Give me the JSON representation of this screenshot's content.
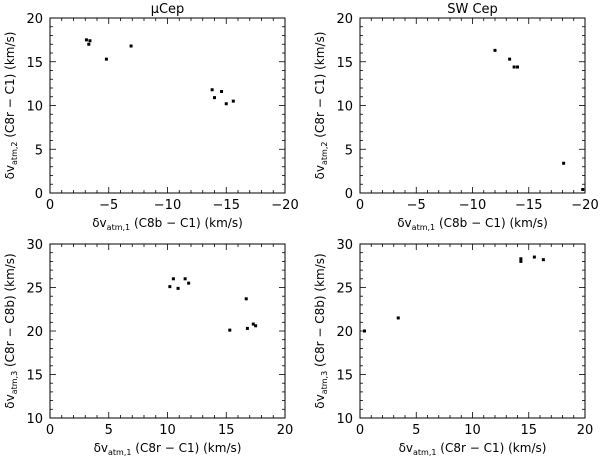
{
  "chart_data": [
    {
      "type": "scatter",
      "title": "μCep",
      "xlabel": {
        "main": "δv",
        "sub": "atm,1",
        "rest": " (C8b − C1) (km/s)"
      },
      "ylabel": {
        "main": "δv",
        "sub": "atm,2",
        "rest": " (C8r − C1) (km/s)"
      },
      "xlim": [
        0,
        -20
      ],
      "ylim": [
        0,
        20
      ],
      "xticks": [
        0,
        -5,
        -10,
        -15,
        -20
      ],
      "yticks": [
        0,
        5,
        10,
        15,
        20
      ],
      "grid": false,
      "series": [
        {
          "points": [
            [
              -3.1,
              17.5
            ],
            [
              -3.4,
              17.4
            ],
            [
              -3.3,
              17.0
            ],
            [
              -4.8,
              15.3
            ],
            [
              -6.9,
              16.8
            ],
            [
              -13.8,
              11.8
            ],
            [
              -14.0,
              10.9
            ],
            [
              -14.6,
              11.6
            ],
            [
              -15.0,
              10.2
            ],
            [
              -15.6,
              10.5
            ]
          ]
        }
      ]
    },
    {
      "type": "scatter",
      "title": "SW Cep",
      "xlabel": {
        "main": "δv",
        "sub": "atm,1",
        "rest": " (C8b − C1) (km/s)"
      },
      "ylabel": {
        "main": "δv",
        "sub": "atm,2",
        "rest": " (C8r − C1) (km/s)"
      },
      "xlim": [
        0,
        -20
      ],
      "ylim": [
        0,
        20
      ],
      "xticks": [
        0,
        -5,
        -10,
        -15,
        -20
      ],
      "yticks": [
        0,
        5,
        10,
        15,
        20
      ],
      "grid": false,
      "series": [
        {
          "points": [
            [
              -12.0,
              16.3
            ],
            [
              -13.3,
              15.3
            ],
            [
              -13.7,
              14.4
            ],
            [
              -14.0,
              14.4
            ],
            [
              -18.1,
              3.4
            ],
            [
              -19.8,
              0.4
            ]
          ]
        }
      ]
    },
    {
      "type": "scatter",
      "title": "",
      "xlabel": {
        "main": "δv",
        "sub": "atm,1",
        "rest": " (C8r − C1) (km/s)"
      },
      "ylabel": {
        "main": "δv",
        "sub": "atm,3",
        "rest": " (C8r − C8b) (km/s)"
      },
      "xlim": [
        0,
        20
      ],
      "ylim": [
        10,
        30
      ],
      "xticks": [
        0,
        5,
        10,
        15,
        20
      ],
      "yticks": [
        10,
        15,
        20,
        25,
        30
      ],
      "grid": false,
      "series": [
        {
          "points": [
            [
              10.2,
              25.1
            ],
            [
              10.5,
              26.0
            ],
            [
              10.9,
              24.9
            ],
            [
              11.5,
              26.0
            ],
            [
              11.8,
              25.5
            ],
            [
              15.3,
              20.1
            ],
            [
              16.7,
              23.7
            ],
            [
              16.8,
              20.3
            ],
            [
              17.3,
              20.8
            ],
            [
              17.5,
              20.6
            ]
          ]
        }
      ]
    },
    {
      "type": "scatter",
      "title": "",
      "xlabel": {
        "main": "δv",
        "sub": "atm,1",
        "rest": " (C8r − C1) (km/s)"
      },
      "ylabel": {
        "main": "δv",
        "sub": "atm,3",
        "rest": " (C8r − C8b) (km/s)"
      },
      "xlim": [
        0,
        20
      ],
      "ylim": [
        10,
        30
      ],
      "xticks": [
        0,
        5,
        10,
        15,
        20
      ],
      "yticks": [
        10,
        15,
        20,
        25,
        30
      ],
      "grid": false,
      "series": [
        {
          "points": [
            [
              0.4,
              20.0
            ],
            [
              3.4,
              21.5
            ],
            [
              14.3,
              28.0
            ],
            [
              14.3,
              28.3
            ],
            [
              15.5,
              28.5
            ],
            [
              16.3,
              28.2
            ]
          ]
        }
      ]
    }
  ]
}
